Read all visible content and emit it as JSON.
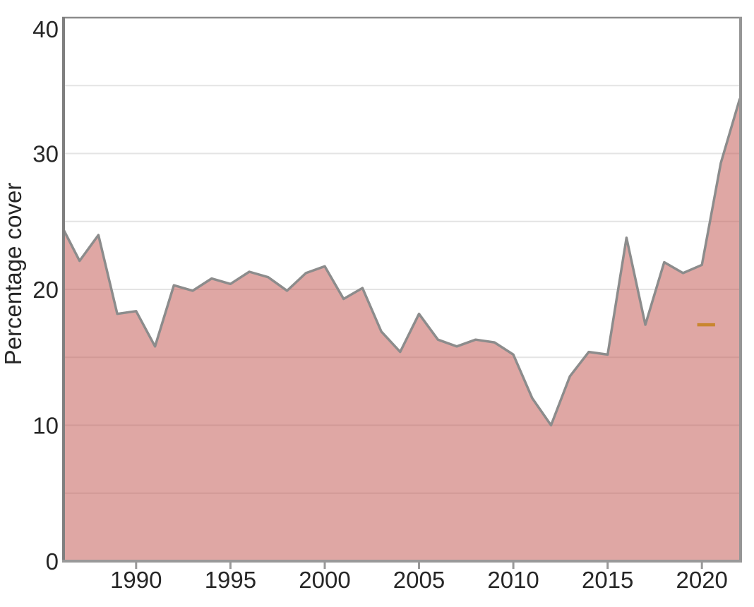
{
  "figure": {
    "background": "#ffffff",
    "title": ""
  },
  "chart_data": {
    "type": "area",
    "title": "",
    "xlabel": "",
    "ylabel": "Percentage cover",
    "x": [
      1986,
      1987,
      1988,
      1989,
      1990,
      1991,
      1992,
      1993,
      1994,
      1995,
      1996,
      1997,
      1998,
      1999,
      2000,
      2001,
      2002,
      2003,
      2004,
      2005,
      2006,
      2007,
      2008,
      2009,
      2010,
      2011,
      2012,
      2013,
      2014,
      2015,
      2016,
      2017,
      2018,
      2019,
      2020,
      2021,
      2022
    ],
    "values": [
      24.8,
      22.1,
      24.0,
      18.2,
      18.4,
      15.8,
      20.3,
      19.9,
      20.8,
      20.4,
      21.3,
      20.9,
      19.9,
      21.2,
      21.7,
      19.3,
      20.1,
      16.9,
      15.4,
      18.2,
      16.3,
      15.8,
      16.3,
      16.1,
      15.2,
      12.0,
      10.0,
      13.6,
      15.4,
      15.2,
      23.8,
      17.4,
      22.0,
      21.2,
      21.8,
      29.3,
      34.0
    ],
    "xlim": [
      1986.15,
      2022.05
    ],
    "ylim": [
      0,
      40
    ],
    "x_ticks": [
      1990,
      1995,
      2000,
      2005,
      2010,
      2015,
      2020
    ],
    "y_ticks": [
      0,
      10,
      20,
      30,
      40
    ],
    "y_gridline_step": 5,
    "grid": "horizontal-only",
    "legend": "none",
    "reference_marker": {
      "year_start": 2019.75,
      "year_end": 2020.7,
      "value": 17.4
    },
    "colors": {
      "area_fill_base": "#c0504a",
      "area_fill_opacity": 0.5,
      "area_fill_flattened": "#dfa7a4",
      "line": "#8c8c8c",
      "gridline": "#e4e4e4",
      "axis": "#999999",
      "left_axis": "#7f7f7f",
      "text": "#262626",
      "reference_marker": "#c9862f"
    }
  }
}
